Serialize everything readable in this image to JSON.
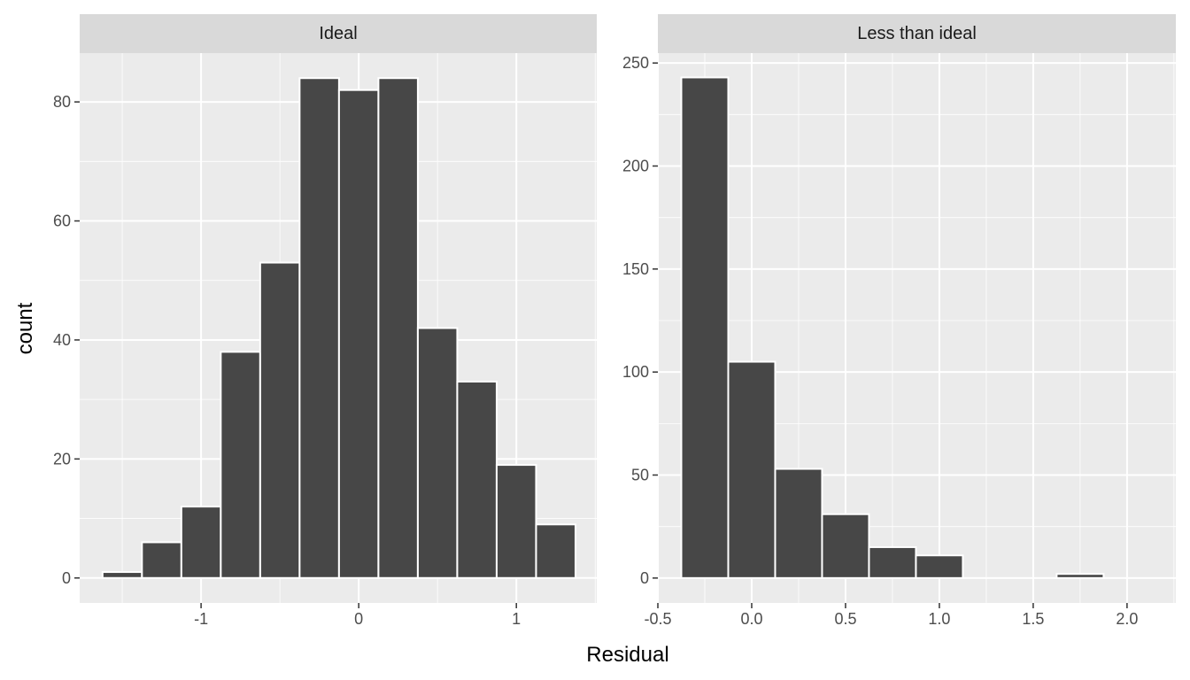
{
  "chart_data": {
    "type": "bar",
    "xlabel": "Residual",
    "ylabel": "count",
    "grid": true,
    "panels": [
      {
        "strip": "Ideal",
        "bin_width": 0.25,
        "xlim": [
          -1.77,
          1.51
        ],
        "ylim": [
          -4.2,
          88.2
        ],
        "x_ticks": [
          -1,
          0,
          1
        ],
        "x_tick_labels": [
          "-1",
          "0",
          "1"
        ],
        "y_ticks": [
          0,
          20,
          40,
          60,
          80
        ],
        "y_tick_labels": [
          "0",
          "20",
          "40",
          "60",
          "80"
        ],
        "bin_centers": [
          -1.5,
          -1.25,
          -1.0,
          -0.75,
          -0.5,
          -0.25,
          0.0,
          0.25,
          0.5,
          0.75,
          1.0,
          1.25
        ],
        "values": [
          1,
          6,
          12,
          38,
          53,
          84,
          82,
          84,
          42,
          33,
          19,
          9
        ]
      },
      {
        "strip": "Less than ideal",
        "bin_width": 0.25,
        "xlim": [
          -0.5,
          2.26
        ],
        "ylim": [
          -12.1,
          254.8
        ],
        "x_ticks": [
          -0.5,
          0.0,
          0.5,
          1.0,
          1.5,
          2.0
        ],
        "x_tick_labels": [
          "-0.5",
          "0.0",
          "0.5",
          "1.0",
          "1.5",
          "2.0"
        ],
        "y_ticks": [
          0,
          50,
          100,
          150,
          200,
          250
        ],
        "y_tick_labels": [
          "0",
          "50",
          "100",
          "150",
          "200",
          "250"
        ],
        "bin_centers": [
          -0.25,
          0.0,
          0.25,
          0.5,
          0.75,
          1.0,
          1.25,
          1.5,
          1.75,
          2.0
        ],
        "values": [
          243,
          105,
          53,
          31,
          15,
          11,
          0,
          0,
          2,
          0
        ]
      }
    ]
  }
}
